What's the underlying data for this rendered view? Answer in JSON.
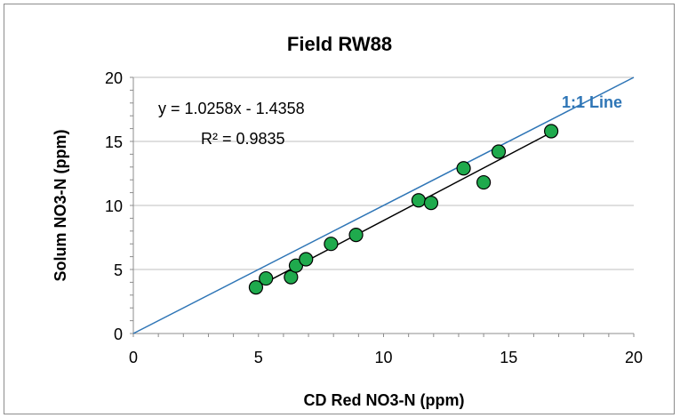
{
  "chart_data": {
    "type": "scatter",
    "title": "Field RW88",
    "xlabel": "CD Red NO3-N (ppm)",
    "ylabel": "Solum NO3-N (ppm)",
    "xlim": [
      0,
      20
    ],
    "ylim": [
      0,
      20
    ],
    "xticks": [
      "0",
      "5",
      "10",
      "15",
      "20"
    ],
    "yticks": [
      "0",
      "5",
      "10",
      "15",
      "20"
    ],
    "grid": "horizontal",
    "points": [
      [
        4.9,
        3.6
      ],
      [
        5.3,
        4.3
      ],
      [
        6.3,
        4.4
      ],
      [
        6.5,
        5.3
      ],
      [
        6.9,
        5.8
      ],
      [
        7.9,
        7.0
      ],
      [
        8.9,
        7.7
      ],
      [
        11.4,
        10.4
      ],
      [
        11.9,
        10.2
      ],
      [
        13.2,
        12.9
      ],
      [
        14.0,
        11.8
      ],
      [
        14.6,
        14.2
      ],
      [
        16.7,
        15.8
      ]
    ],
    "trendline": {
      "slope": 1.0258,
      "intercept": -1.4358,
      "x_range": [
        4.9,
        16.7
      ]
    },
    "one_to_one_line": {
      "label": "1:1 Line",
      "x_range": [
        0,
        20
      ]
    },
    "equation_text": "y = 1.0258x - 1.4358",
    "r2_text": "R² = 0.9835",
    "colors": {
      "marker_fill": "#1faa4d",
      "marker_stroke": "#000000",
      "trendline": "#000000",
      "one_to_one": "#2e75b6",
      "gridline": "#bfbfbf"
    }
  }
}
